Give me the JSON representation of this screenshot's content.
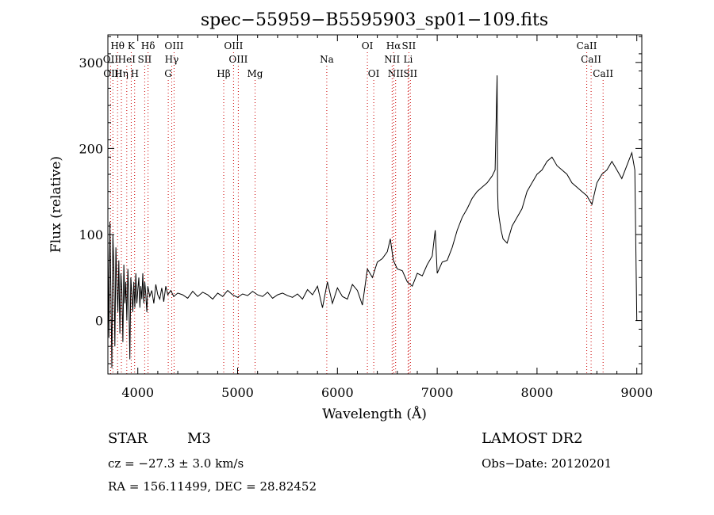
{
  "chart_data": {
    "type": "line",
    "title": "spec−55959−B5595903_sp01−109.fits",
    "xlabel": "Wavelength (Å)",
    "ylabel": "Flux (relative)",
    "xlim": [
      3700,
      9050
    ],
    "ylim": [
      -62,
      332
    ],
    "x_ticks": [
      4000,
      5000,
      6000,
      7000,
      8000,
      9000
    ],
    "y_ticks": [
      0,
      100,
      200,
      300
    ],
    "grid": false,
    "series": [
      {
        "x": [
          3700,
          3710,
          3720,
          3730,
          3740,
          3750,
          3760,
          3770,
          3780,
          3790,
          3800,
          3810,
          3820,
          3830,
          3840,
          3850,
          3860,
          3870,
          3880,
          3890,
          3900,
          3910,
          3920,
          3930,
          3940,
          3950,
          3960,
          3970,
          3980,
          3990,
          4000,
          4010,
          4020,
          4030,
          4040,
          4050,
          4060,
          4070,
          4080,
          4090,
          4100,
          4120,
          4140,
          4160,
          4180,
          4200,
          4220,
          4240,
          4260,
          4280,
          4300,
          4330,
          4360,
          4400,
          4450,
          4500,
          4550,
          4600,
          4650,
          4700,
          4750,
          4800,
          4850,
          4900,
          4950,
          5000,
          5050,
          5100,
          5150,
          5200,
          5250,
          5300,
          5350,
          5400,
          5450,
          5500,
          5550,
          5600,
          5650,
          5700,
          5750,
          5800,
          5850,
          5900,
          5950,
          6000,
          6050,
          6100,
          6150,
          6200,
          6250,
          6300,
          6350,
          6400,
          6450,
          6500,
          6530,
          6560,
          6600,
          6650,
          6700,
          6750,
          6800,
          6850,
          6900,
          6950,
          6980,
          7000,
          7050,
          7100,
          7150,
          7200,
          7250,
          7300,
          7350,
          7400,
          7450,
          7500,
          7550,
          7580,
          7600,
          7605,
          7610,
          7620,
          7640,
          7660,
          7700,
          7750,
          7800,
          7850,
          7900,
          7950,
          8000,
          8050,
          8100,
          8150,
          8200,
          8250,
          8300,
          8350,
          8400,
          8450,
          8500,
          8550,
          8600,
          8650,
          8700,
          8750,
          8800,
          8850,
          8900,
          8950,
          8980,
          9000
        ],
        "y": [
          90,
          -20,
          115,
          30,
          -55,
          100,
          60,
          -30,
          85,
          40,
          10,
          70,
          -15,
          55,
          35,
          -25,
          65,
          20,
          45,
          0,
          60,
          25,
          -45,
          50,
          30,
          10,
          45,
          15,
          55,
          20,
          35,
          50,
          15,
          40,
          25,
          55,
          20,
          45,
          30,
          10,
          40,
          28,
          35,
          20,
          42,
          30,
          25,
          38,
          22,
          40,
          30,
          35,
          28,
          32,
          30,
          26,
          34,
          28,
          33,
          30,
          25,
          32,
          28,
          35,
          30,
          27,
          31,
          29,
          34,
          30,
          28,
          33,
          26,
          30,
          32,
          29,
          27,
          31,
          25,
          36,
          30,
          40,
          15,
          45,
          20,
          38,
          28,
          25,
          42,
          35,
          18,
          60,
          50,
          68,
          72,
          80,
          95,
          70,
          60,
          58,
          45,
          40,
          55,
          52,
          65,
          75,
          105,
          55,
          68,
          70,
          85,
          105,
          120,
          130,
          142,
          150,
          155,
          160,
          168,
          175,
          285,
          150,
          130,
          120,
          105,
          95,
          90,
          110,
          120,
          130,
          150,
          160,
          170,
          175,
          185,
          190,
          180,
          175,
          170,
          160,
          155,
          150,
          145,
          135,
          160,
          170,
          175,
          185,
          175,
          165,
          180,
          195,
          175,
          0
        ]
      }
    ],
    "spectral_lines": [
      {
        "name": "Hθ",
        "row": 1
      },
      {
        "name": "K",
        "row": 1
      },
      {
        "name": "Hδ",
        "row": 1
      },
      {
        "name": "OIII",
        "row": 1
      },
      {
        "name": "OIII",
        "row": 1
      },
      {
        "name": "OI",
        "row": 1
      },
      {
        "name": "Hα",
        "row": 1
      },
      {
        "name": "SII",
        "row": 1
      },
      {
        "name": "CaII",
        "row": 1
      },
      {
        "name": "OII",
        "row": 2
      },
      {
        "name": "HeI",
        "row": 2
      },
      {
        "name": "SII",
        "row": 2
      },
      {
        "name": "Hγ",
        "row": 2
      },
      {
        "name": "OIII",
        "row": 2
      },
      {
        "name": "Na",
        "row": 2
      },
      {
        "name": "NII",
        "row": 2
      },
      {
        "name": "Li",
        "row": 2
      },
      {
        "name": "CaII",
        "row": 2
      },
      {
        "name": "OIII",
        "row": 3
      },
      {
        "name": "Hη",
        "row": 3
      },
      {
        "name": "H",
        "row": 3
      },
      {
        "name": "G",
        "row": 3
      },
      {
        "name": "Hβ",
        "row": 3
      },
      {
        "name": "Mg",
        "row": 3
      },
      {
        "name": "OI",
        "row": 3
      },
      {
        "name": "NII",
        "row": 3
      },
      {
        "name": "SII",
        "row": 3
      },
      {
        "name": "CaII",
        "row": 3
      }
    ],
    "line_wavelengths": [
      3797,
      3934,
      4102,
      4363,
      4959,
      6300,
      6563,
      6716,
      8498,
      3727,
      3889,
      4069,
      4340,
      5007,
      5893,
      6548,
      6708,
      8542,
      3750,
      3835,
      3968,
      4305,
      4861,
      5175,
      6364,
      6583,
      6731,
      8662
    ],
    "line_color": "#000000",
    "marker_color": "#cc0000"
  },
  "info": {
    "object_class": "STAR",
    "subclass": "M3",
    "catalog": "LAMOST DR2",
    "redshift": "cz = −27.3 ± 3.0 km/s",
    "obs_date": "Obs−Date: 20120201",
    "coords": "RA = 156.11499, DEC =  28.82452"
  }
}
